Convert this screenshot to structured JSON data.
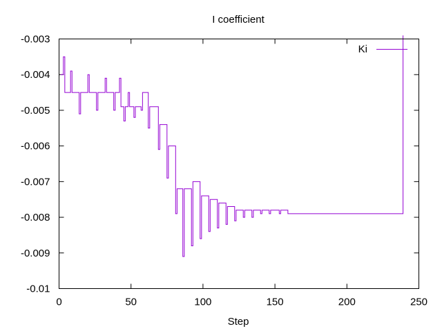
{
  "chart_data": {
    "type": "line",
    "title": "I coefficient",
    "xlabel": "Step",
    "ylabel": "",
    "xlim": [
      0,
      250
    ],
    "ylim": [
      -0.01,
      -0.003
    ],
    "xticks": [
      0,
      50,
      100,
      150,
      200,
      250
    ],
    "yticks": [
      -0.01,
      -0.009,
      -0.008,
      -0.007,
      -0.006,
      -0.005,
      -0.004,
      -0.003
    ],
    "xtick_labels": [
      "0",
      "50",
      "100",
      "150",
      "200",
      "250"
    ],
    "ytick_labels": [
      "-0.01",
      "-0.009",
      "-0.008",
      "-0.007",
      "-0.006",
      "-0.005",
      "-0.004",
      "-0.003"
    ],
    "grid": false,
    "legend_position": "top-right",
    "step": true,
    "series": [
      {
        "name": "Ki",
        "color": "#9400d3",
        "x": [
          1,
          3,
          4,
          8,
          9,
          14,
          15,
          20,
          21,
          26,
          27,
          32,
          33,
          38,
          39,
          42,
          43,
          45,
          46,
          48,
          49,
          52,
          53,
          57,
          58,
          62,
          63,
          69,
          70,
          75,
          76,
          81,
          82,
          86,
          87,
          92,
          93,
          98,
          99,
          104,
          105,
          110,
          111,
          116,
          117,
          122,
          123,
          128,
          129,
          134,
          135,
          140,
          141,
          146,
          147,
          153,
          154,
          159,
          160,
          165,
          166,
          171,
          172,
          177,
          178,
          183,
          184,
          189,
          190,
          195,
          196,
          201,
          202,
          207,
          208,
          213,
          214,
          219,
          220,
          225,
          226,
          231,
          232,
          237,
          238,
          239
        ],
        "y": [
          -0.004,
          -0.0035,
          -0.0045,
          -0.0039,
          -0.0045,
          -0.0051,
          -0.0045,
          -0.004,
          -0.0045,
          -0.005,
          -0.0045,
          -0.0041,
          -0.0045,
          -0.005,
          -0.0045,
          -0.0041,
          -0.0049,
          -0.0053,
          -0.0049,
          -0.0045,
          -0.0049,
          -0.0052,
          -0.0049,
          -0.005,
          -0.0045,
          -0.0055,
          -0.0049,
          -0.0061,
          -0.0054,
          -0.0069,
          -0.006,
          -0.0079,
          -0.0072,
          -0.0091,
          -0.0072,
          -0.0088,
          -0.007,
          -0.0086,
          -0.0074,
          -0.0084,
          -0.0075,
          -0.0083,
          -0.0076,
          -0.0082,
          -0.0077,
          -0.0081,
          -0.0078,
          -0.008,
          -0.0078,
          -0.008,
          -0.0078,
          -0.0079,
          -0.0078,
          -0.0079,
          -0.0078,
          -0.0079,
          -0.0078,
          -0.0079,
          -0.0079,
          -0.0079,
          -0.0079,
          -0.0079,
          -0.0079,
          -0.0079,
          -0.0079,
          -0.0079,
          -0.0079,
          -0.0079,
          -0.0079,
          -0.0079,
          -0.0079,
          -0.0079,
          -0.0079,
          -0.0079,
          -0.0079,
          -0.0079,
          -0.0079,
          -0.0079,
          -0.0079,
          -0.0079,
          -0.0079,
          -0.0079,
          -0.0079,
          -0.0079,
          -0.0079,
          -0.0029
        ]
      }
    ]
  }
}
